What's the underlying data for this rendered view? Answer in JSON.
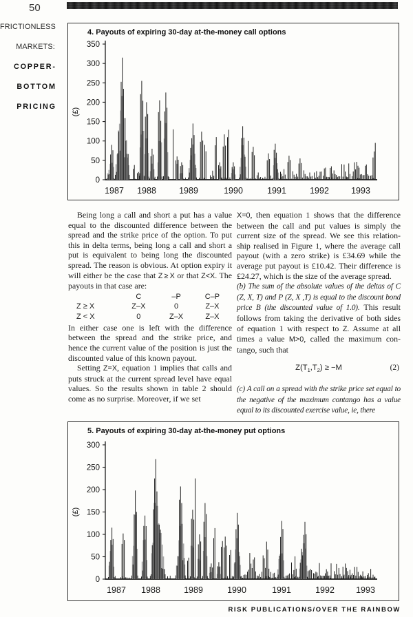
{
  "page": {
    "number": "50",
    "footer": "RISK PUBLICATIONS/OVER THE RAINBOW"
  },
  "sidebar": {
    "regular": [
      "FRICTIONLESS",
      "MARKETS:"
    ],
    "bold": [
      "COPPER-",
      "BOTTOM",
      "PRICING"
    ]
  },
  "chart_data": [
    {
      "type": "bar",
      "title": "4. Payouts of expiring 30-day at-the-money call options",
      "ylabel": "(£)",
      "ylim": [
        0,
        350
      ],
      "ytick_step": 50,
      "grid": false,
      "x_years": [
        "1987",
        "1988",
        "1989",
        "1990",
        "1991",
        "1992",
        "1993"
      ],
      "year_x": [
        13,
        60,
        121,
        186,
        249,
        311,
        371
      ],
      "clusters": [
        [
          2,
          12,
          90,
          1,
          0.7
        ],
        [
          14,
          22,
          315,
          1,
          0.48
        ],
        [
          40,
          3,
          38,
          0,
          0.5
        ],
        [
          46,
          7,
          20,
          0,
          0.4
        ],
        [
          49,
          8,
          255,
          1,
          0.6
        ],
        [
          56,
          8,
          200,
          1,
          0.45
        ],
        [
          64,
          9,
          80,
          1,
          0.5
        ],
        [
          75,
          9,
          205,
          1,
          0.6
        ],
        [
          84,
          9,
          225,
          1,
          0.4
        ],
        [
          98,
          2,
          130,
          0,
          0.5
        ],
        [
          102,
          5,
          60,
          1,
          0.5
        ],
        [
          107,
          6,
          45,
          1,
          0.5
        ],
        [
          120,
          14,
          145,
          1,
          0.55
        ],
        [
          136,
          8,
          124,
          0,
          0.6
        ],
        [
          144,
          4,
          90,
          0,
          0.4
        ],
        [
          152,
          6,
          25,
          0,
          -1
        ],
        [
          159,
          4,
          110,
          0,
          0.5
        ],
        [
          164,
          5,
          45,
          1,
          0.5
        ],
        [
          169,
          9,
          117,
          0,
          0.6
        ],
        [
          177,
          4,
          129,
          0,
          0.5
        ],
        [
          182,
          8,
          45,
          1,
          0.5
        ],
        [
          194,
          12,
          138,
          1,
          0.55
        ],
        [
          207,
          2,
          100,
          0,
          0.5
        ],
        [
          211,
          8,
          85,
          0,
          0.45
        ],
        [
          220,
          6,
          22,
          0,
          -1
        ],
        [
          228,
          4,
          12,
          0,
          -1
        ],
        [
          233,
          10,
          68,
          0,
          0.45
        ],
        [
          243,
          11,
          93,
          1,
          0.4
        ],
        [
          254,
          8,
          50,
          0,
          -1
        ],
        [
          263,
          8,
          62,
          0,
          0.55
        ],
        [
          272,
          6,
          30,
          0,
          -1
        ],
        [
          279,
          9,
          55,
          0,
          0.5
        ],
        [
          288,
          14,
          35,
          0,
          -1
        ],
        [
          303,
          12,
          32,
          0,
          -1
        ],
        [
          316,
          13,
          42,
          0,
          -1
        ],
        [
          330,
          12,
          38,
          0,
          -1
        ],
        [
          343,
          14,
          45,
          0,
          -1
        ],
        [
          358,
          13,
          48,
          0,
          -1
        ],
        [
          372,
          12,
          52,
          0,
          -1
        ],
        [
          385,
          5,
          60,
          0,
          -1
        ],
        [
          390,
          4,
          95,
          0,
          0.75
        ]
      ]
    },
    {
      "type": "bar",
      "title": "5. Payouts of expiring 30-day at-the-money put options",
      "ylabel": "(£)",
      "ylim": [
        0,
        300
      ],
      "ytick_step": 50,
      "grid": false,
      "x_years": [
        "1987",
        "1988",
        "1989",
        "1990",
        "1991",
        "1992",
        "1993"
      ],
      "year_x": [
        16,
        66,
        128,
        191,
        256,
        319,
        378
      ],
      "clusters": [
        [
          4,
          11,
          115,
          1,
          0.55
        ],
        [
          22,
          9,
          102,
          0,
          0.4
        ],
        [
          38,
          11,
          198,
          1,
          0.6
        ],
        [
          52,
          10,
          142,
          1,
          0.5
        ],
        [
          66,
          22,
          268,
          1,
          0.3
        ],
        [
          90,
          5,
          6,
          0,
          -1
        ],
        [
          102,
          16,
          207,
          1,
          0.55
        ],
        [
          119,
          3,
          48,
          0,
          0.5
        ],
        [
          123,
          7,
          155,
          1,
          0.5
        ],
        [
          130,
          2,
          225,
          0,
          0.5
        ],
        [
          133,
          6,
          100,
          1,
          0.5
        ],
        [
          141,
          8,
          170,
          1,
          0.4
        ],
        [
          150,
          6,
          35,
          1,
          0.5
        ],
        [
          157,
          3,
          114,
          0,
          0.5
        ],
        [
          161,
          8,
          38,
          1,
          0.5
        ],
        [
          168,
          4,
          85,
          0,
          0.5
        ],
        [
          172,
          7,
          95,
          0,
          0.4
        ],
        [
          180,
          4,
          65,
          0,
          0.5
        ],
        [
          186,
          12,
          148,
          1,
          0.55
        ],
        [
          199,
          6,
          10,
          0,
          -1
        ],
        [
          206,
          13,
          100,
          0,
          -1
        ],
        [
          220,
          7,
          15,
          0,
          -1
        ],
        [
          227,
          12,
          90,
          0,
          -1
        ],
        [
          240,
          8,
          15,
          0,
          -1
        ],
        [
          249,
          12,
          130,
          1,
          0.6
        ],
        [
          262,
          7,
          45,
          0,
          -1
        ],
        [
          270,
          9,
          60,
          0,
          -1
        ],
        [
          281,
          13,
          128,
          1,
          0.65
        ],
        [
          294,
          7,
          50,
          0,
          -1
        ],
        [
          302,
          28,
          40,
          0,
          -1
        ],
        [
          332,
          10,
          45,
          0,
          -1
        ],
        [
          343,
          35,
          33,
          0,
          -1
        ],
        [
          380,
          12,
          22,
          0,
          -1
        ]
      ]
    }
  ],
  "body": {
    "left": [
      {
        "type": "p",
        "indent": true,
        "runs": [
          {
            "s": "r",
            "t": "Being long a call and short a put has a value equal to the discounted difference between the spread and the strike price of the option. To put this in delta terms, being long a call and short a put is equivalent to being long the discounted spread. The reason is obvious. At option expiry it will either be the case that "
          },
          {
            "s": "m",
            "t": "Z ≥ X"
          },
          {
            "s": "r",
            "t": " or that "
          },
          {
            "s": "m",
            "t": "Z<X"
          },
          {
            "s": "r",
            "t": ". The payouts in that case are:"
          }
        ]
      },
      {
        "type": "table"
      },
      {
        "type": "p",
        "indent": false,
        "runs": [
          {
            "s": "r",
            "t": "In either case one is left with the difference between the spread and the strike price, and hence the current value of the position is just the discounted value of this known payout."
          }
        ]
      },
      {
        "type": "p",
        "indent": true,
        "runs": [
          {
            "s": "r",
            "t": "Setting "
          },
          {
            "s": "m",
            "t": "Z=X"
          },
          {
            "s": "r",
            "t": ", equation 1 implies that calls and puts struck at the current spread level have equal values. So the results shown in table 2 should come as no surprise. Moreover, if we set"
          }
        ]
      }
    ],
    "right": [
      {
        "type": "p",
        "indent": false,
        "runs": [
          {
            "s": "m",
            "t": "X=0"
          },
          {
            "s": "r",
            "t": ", then equation 1 shows that the difference between the call and put values is simply the current size of the spread. We see this relation­ship realised in Figure 1, where the average call payout (with a zero strike) is £34.69 while the average put payout is £10.42. Their difference is £24.27, which is the size of the average spread."
          }
        ]
      },
      {
        "type": "p",
        "indent": false,
        "runs": [
          {
            "s": "i",
            "t": "(b) The sum of the absolute values of the deltas of C (Z, X, T) and P (Z, X ,T) is equal to the discount bond price B (the discounted value of 1.0)."
          },
          {
            "s": "r",
            "t": " This result follows from taking the derivative of both sides of equation 1 with respect to "
          },
          {
            "s": "m",
            "t": "Z"
          },
          {
            "s": "r",
            "t": ". Assume at all times a value "
          },
          {
            "s": "m",
            "t": "M>0"
          },
          {
            "s": "r",
            "t": ", called the maximum con­tango, such that"
          }
        ]
      },
      {
        "type": "equation"
      },
      {
        "type": "p",
        "indent": false,
        "runs": [
          {
            "s": "i",
            "t": "(c) A call on a spread with the strike price set equal to the negative of the maximum contango has a value equal to its discounted exercise value, ie, there"
          }
        ]
      }
    ]
  },
  "table": {
    "headers": [
      "",
      "C",
      "–P",
      "C–P"
    ],
    "rows": [
      [
        "Z ≥ X",
        "Z–X",
        "0",
        "Z–X"
      ],
      [
        "Z < X",
        "0",
        "Z–X",
        "Z–X"
      ]
    ]
  },
  "equation": {
    "pre": "Z(T",
    "sub1": "1",
    "mid": ",T",
    "sub2": "2",
    "post": ") ≥ −M",
    "number": "(2)"
  },
  "colors": {
    "ink": "#1a1a1a",
    "gray_fill": "#a8a8a8",
    "bar": "#1f1f1f"
  }
}
